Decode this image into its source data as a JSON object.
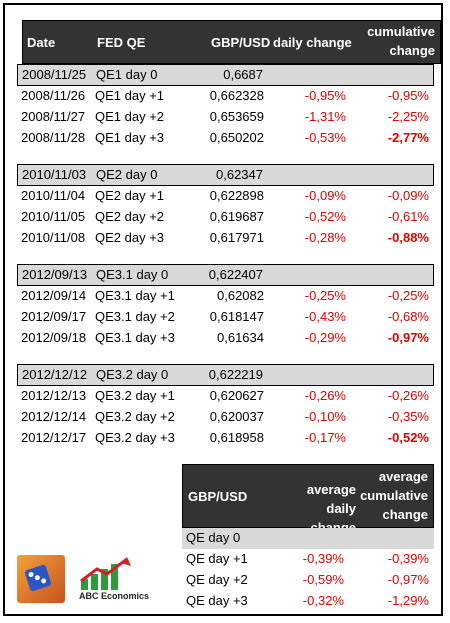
{
  "header": {
    "date": "Date",
    "fed_qe": "FED QE",
    "gbpusd": "GBP/USD",
    "daily_change": "daily change",
    "cumulative_line1": "cumulative",
    "cumulative_line2": "change"
  },
  "groups": [
    {
      "rows": [
        {
          "date": "2008/11/25",
          "qe": "QE1 day 0",
          "val": "0,6687",
          "daily": "",
          "cum": ""
        },
        {
          "date": "2008/11/26",
          "qe": "QE1 day +1",
          "val": "0,662328",
          "daily": "-0,95%",
          "cum": "-0,95%"
        },
        {
          "date": "2008/11/27",
          "qe": "QE1 day +2",
          "val": "0,653659",
          "daily": "-1,31%",
          "cum": "-2,25%"
        },
        {
          "date": "2008/11/28",
          "qe": "QE1 day +3",
          "val": "0,650202",
          "daily": "-0,53%",
          "cum": "-2,77%"
        }
      ]
    },
    {
      "rows": [
        {
          "date": "2010/11/03",
          "qe": "QE2 day 0",
          "val": "0,62347",
          "daily": "",
          "cum": ""
        },
        {
          "date": "2010/11/04",
          "qe": "QE2 day +1",
          "val": "0,622898",
          "daily": "-0,09%",
          "cum": "-0,09%"
        },
        {
          "date": "2010/11/05",
          "qe": "QE2 day +2",
          "val": "0,619687",
          "daily": "-0,52%",
          "cum": "-0,61%"
        },
        {
          "date": "2010/11/08",
          "qe": "QE2 day +3",
          "val": "0,617971",
          "daily": "-0,28%",
          "cum": "-0,88%"
        }
      ]
    },
    {
      "rows": [
        {
          "date": "2012/09/13",
          "qe": "QE3.1 day 0",
          "val": "0,622407",
          "daily": "",
          "cum": ""
        },
        {
          "date": "2012/09/14",
          "qe": "QE3.1 day +1",
          "val": "0,62082",
          "daily": "-0,25%",
          "cum": "-0,25%"
        },
        {
          "date": "2012/09/17",
          "qe": "QE3.1 day +2",
          "val": "0,618147",
          "daily": "-0,43%",
          "cum": "-0,68%"
        },
        {
          "date": "2012/09/18",
          "qe": "QE3.1 day +3",
          "val": "0,61634",
          "daily": "-0,29%",
          "cum": "-0,97%"
        }
      ]
    },
    {
      "rows": [
        {
          "date": "2012/12/12",
          "qe": "QE3.2 day 0",
          "val": "0,622219",
          "daily": "",
          "cum": ""
        },
        {
          "date": "2012/12/13",
          "qe": "QE3.2 day +1",
          "val": "0,620627",
          "daily": "-0,26%",
          "cum": "-0,26%"
        },
        {
          "date": "2012/12/14",
          "qe": "QE3.2 day +2",
          "val": "0,620037",
          "daily": "-0,10%",
          "cum": "-0,35%"
        },
        {
          "date": "2012/12/17",
          "qe": "QE3.2 day +3",
          "val": "0,618958",
          "daily": "-0,17%",
          "cum": "-0,52%"
        }
      ]
    }
  ],
  "summary": {
    "h_gbpusd": "GBP/USD",
    "h_avg_daily_1": "average",
    "h_avg_daily_2": "daily change",
    "h_avg_cum_1": "average",
    "h_avg_cum_2": "cumulative",
    "h_avg_cum_3": "change",
    "rows": [
      {
        "label": "QE day 0",
        "daily": "",
        "cum": ""
      },
      {
        "label": "QE day +1",
        "daily": "-0,39%",
        "cum": "-0,39%"
      },
      {
        "label": "QE day +2",
        "daily": "-0,59%",
        "cum": "-0,97%"
      },
      {
        "label": "QE day +3",
        "daily": "-0,32%",
        "cum": "-1,29%"
      }
    ]
  },
  "logo": {
    "text": "ABC Economics"
  },
  "colors": {
    "header_bg": "#333333",
    "negative": "#e00000",
    "day0_bg": "#d9d9d9"
  }
}
